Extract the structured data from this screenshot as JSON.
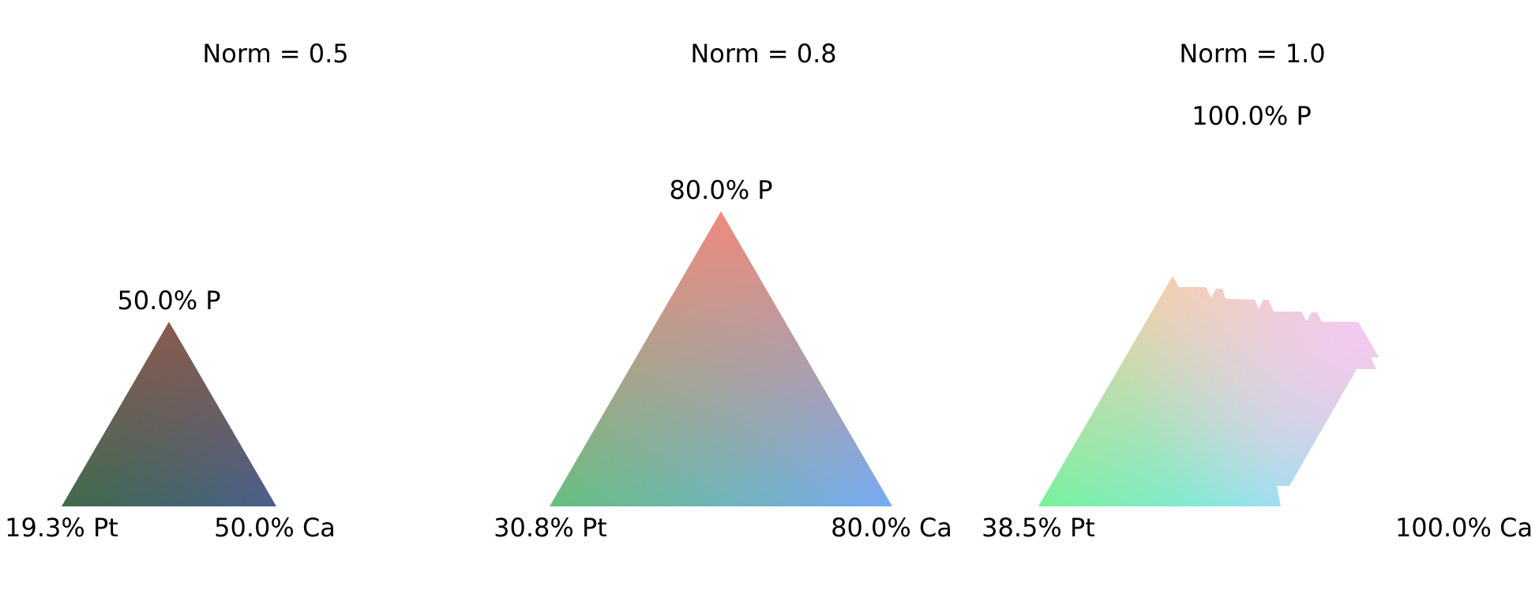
{
  "chart_data": [
    {
      "type": "ternary-colormap",
      "title": "Norm = 0.5",
      "norm": 0.5,
      "labels": {
        "top": "50.0% P",
        "left": "19.3% Pt",
        "right": "50.0% Ca"
      },
      "corner_colors": {
        "top": "#8a5a4e",
        "left": "#3f6b4a",
        "right": "#4a5f8e"
      },
      "clipped": false
    },
    {
      "type": "ternary-colormap",
      "title": "Norm = 0.8",
      "norm": 0.8,
      "labels": {
        "top": "80.0% P",
        "left": "30.8% Pt",
        "right": "80.0% Ca"
      },
      "corner_colors": {
        "top": "#f08a7c",
        "left": "#66bf7e",
        "right": "#77aaf6"
      },
      "clipped": false
    },
    {
      "type": "ternary-colormap",
      "title": "Norm = 1.0",
      "norm": 1.0,
      "labels": {
        "top": "100.0% P",
        "left": "38.5% Pt",
        "right": "100.0% Ca"
      },
      "corner_colors": {
        "top": "#f7cfa4",
        "left": "#79f19a",
        "right": "#8ae4f6",
        "upper_right": "#f6c8f6"
      },
      "clipped": true
    }
  ]
}
